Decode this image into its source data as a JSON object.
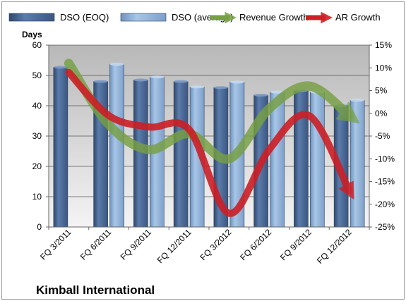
{
  "chart_data": {
    "type": "bar",
    "title": "Kimball International",
    "ylabel_left": "Days",
    "categories": [
      "FQ 3/2011",
      "FQ 6/2011",
      "FQ 9/2011",
      "FQ 12/2011",
      "FQ 3/2012",
      "FQ 6/2012",
      "FQ 9/2012",
      "FQ 12/2012"
    ],
    "y_left": {
      "lim": [
        0,
        60
      ],
      "ticks": [
        "0",
        "10",
        "20",
        "30",
        "40",
        "50",
        "60"
      ]
    },
    "y_right": {
      "lim": [
        -25,
        15
      ],
      "ticks": [
        "-25%",
        "-20%",
        "-15%",
        "-10%",
        "-5%",
        "0%",
        "5%",
        "10%",
        "15%"
      ]
    },
    "series": [
      {
        "name": "DSO (EOQ)",
        "kind": "bar",
        "axis": "left",
        "color": "#4a6a98",
        "values": [
          52.7,
          48.0,
          48.5,
          48.0,
          46.0,
          43.5,
          45.0,
          40.0
        ]
      },
      {
        "name": "DSO (average)",
        "kind": "bar",
        "axis": "left",
        "color": "#8fb2d8",
        "values": [
          null,
          53.7,
          49.5,
          46.2,
          47.8,
          44.5,
          44.5,
          41.8
        ]
      },
      {
        "name": "Revenue Growth",
        "kind": "line",
        "axis": "right",
        "unit": "%",
        "color": "#77a043",
        "values": [
          11.0,
          -2.5,
          -8.0,
          -4.5,
          -10.0,
          1.0,
          6.0,
          -0.5
        ]
      },
      {
        "name": "AR Growth",
        "kind": "line",
        "axis": "right",
        "unit": "%",
        "color": "#cc1f26",
        "values": [
          9.0,
          -0.5,
          -3.0,
          -3.5,
          -22.0,
          -8.0,
          -0.5,
          -17.0
        ]
      }
    ],
    "grid": true,
    "legend_position": "top",
    "plot_background": "gradient-gray"
  }
}
